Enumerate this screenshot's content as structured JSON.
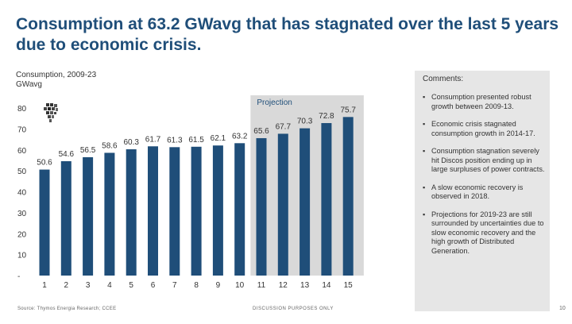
{
  "page_title": "Consumption at 63.2 GWavg that has stagnated over the last 5 years due to economic crisis.",
  "chart_data": {
    "type": "bar",
    "title": "Consumption, 2009-23",
    "ylabel": "GWavg",
    "categories": [
      "1",
      "2",
      "3",
      "4",
      "5",
      "6",
      "7",
      "8",
      "9",
      "10",
      "11",
      "12",
      "13",
      "14",
      "15"
    ],
    "values": [
      50.6,
      54.6,
      56.5,
      58.6,
      60.3,
      61.7,
      61.3,
      61.5,
      62.1,
      63.2,
      65.6,
      67.7,
      70.3,
      72.8,
      75.7
    ],
    "value_labels": [
      "50.6",
      "54.6",
      "56.5",
      "58.6",
      "60.3",
      "61.7",
      "61.3",
      "61.5",
      "62.1",
      "63.2",
      "65.6",
      "67.7",
      "70.3",
      "72.8",
      "75.7"
    ],
    "yticks": [
      "-",
      "10",
      "20",
      "30",
      "40",
      "50",
      "60",
      "70",
      "80"
    ],
    "ytick_values": [
      0,
      10,
      20,
      30,
      40,
      50,
      60,
      70,
      80
    ],
    "ylim": [
      0,
      80
    ],
    "projection_label": "Projection",
    "projection_start_index": 10,
    "bar_color": "#1f4e79",
    "projection_shade_color": "#d9d9d9"
  },
  "comments": {
    "heading": "Comments:",
    "items": [
      "Consumption presented robust growth between 2009-13.",
      "Economic crisis stagnated consumption growth in 2014-17.",
      "Consumption stagnation severely hit Discos position ending up in large surpluses of power contracts.",
      "A slow economic recovery is observed in 2018.",
      "Projections for 2019-23 are still surrounded by uncertainties due to slow economic recovery and the high growth of Distributed Generation."
    ]
  },
  "footer": {
    "source": "Source: Thymos Energia Research; CCEE",
    "disclaimer": "DISCUSSION PURPOSES ONLY",
    "page_number": "10"
  },
  "logo_icon": "brazil-map-icon"
}
